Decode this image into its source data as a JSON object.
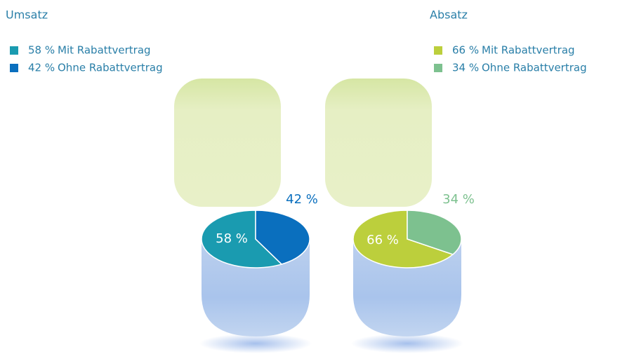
{
  "chart_data": [
    {
      "type": "pie",
      "title": "Umsatz",
      "categories": [
        "Mit Rabattvertrag",
        "Ohne Rabattvertrag"
      ],
      "values": [
        58,
        42
      ],
      "value_labels": [
        "58 %",
        "42 %"
      ],
      "colors": [
        "#1a9bb0",
        "#0a6fbe"
      ]
    },
    {
      "type": "pie",
      "title": "Absatz",
      "categories": [
        "Mit Rabattvertrag",
        "Ohne Rabattvertrag"
      ],
      "values": [
        66,
        34
      ],
      "value_labels": [
        "66 %",
        "34 %"
      ],
      "colors": [
        "#bccf3c",
        "#7dc18f"
      ]
    }
  ]
}
